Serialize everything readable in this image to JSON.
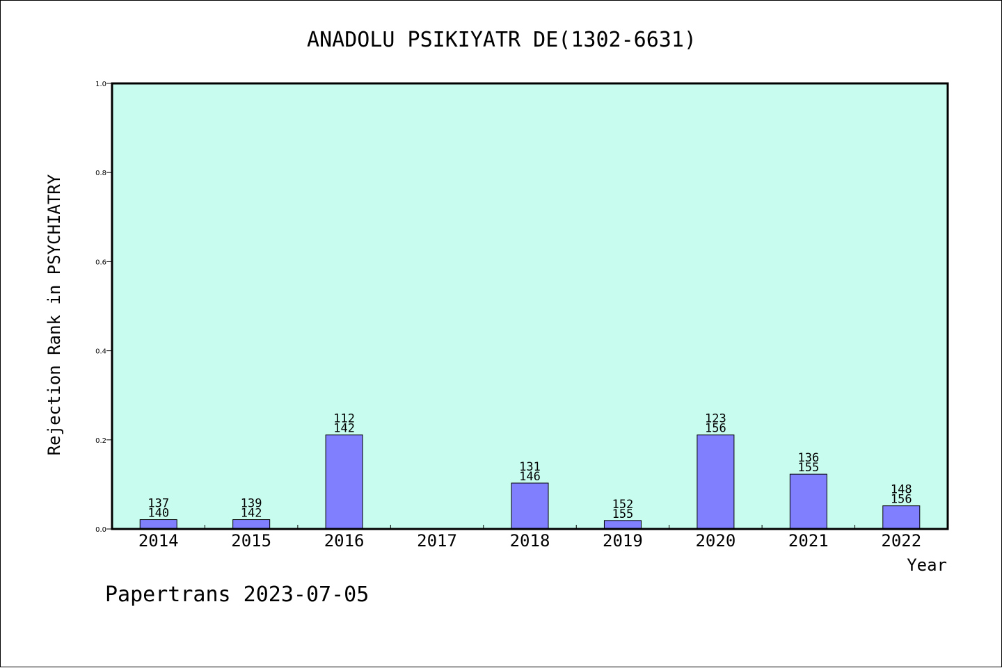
{
  "chart_data": {
    "type": "bar",
    "title": "ANADOLU PSIKIYATR DE(1302-6631)",
    "xlabel": "Year",
    "ylabel": "Rejection Rank in PSYCHIATRY",
    "ylim": [
      0,
      1.0
    ],
    "yticks": [
      "0.0",
      "0.2",
      "0.4",
      "0.6",
      "0.8",
      "1.0"
    ],
    "categories": [
      "2014",
      "2015",
      "2016",
      "2017",
      "2018",
      "2019",
      "2020",
      "2021",
      "2022"
    ],
    "values": [
      0.021,
      0.021,
      0.211,
      null,
      0.103,
      0.019,
      0.211,
      0.123,
      0.052
    ],
    "labels": [
      [
        "137",
        "140"
      ],
      [
        "139",
        "142"
      ],
      [
        "112",
        "142"
      ],
      null,
      [
        "131",
        "146"
      ],
      [
        "152",
        "155"
      ],
      [
        "123",
        "156"
      ],
      [
        "136",
        "155"
      ],
      [
        "148",
        "156"
      ]
    ],
    "grid": false,
    "colors": {
      "plot_background": "#c8fcee",
      "bar_fill": "#8080ff",
      "bar_stroke": "#000000"
    }
  },
  "footer": {
    "credit": "Papertrans 2023-07-05"
  }
}
